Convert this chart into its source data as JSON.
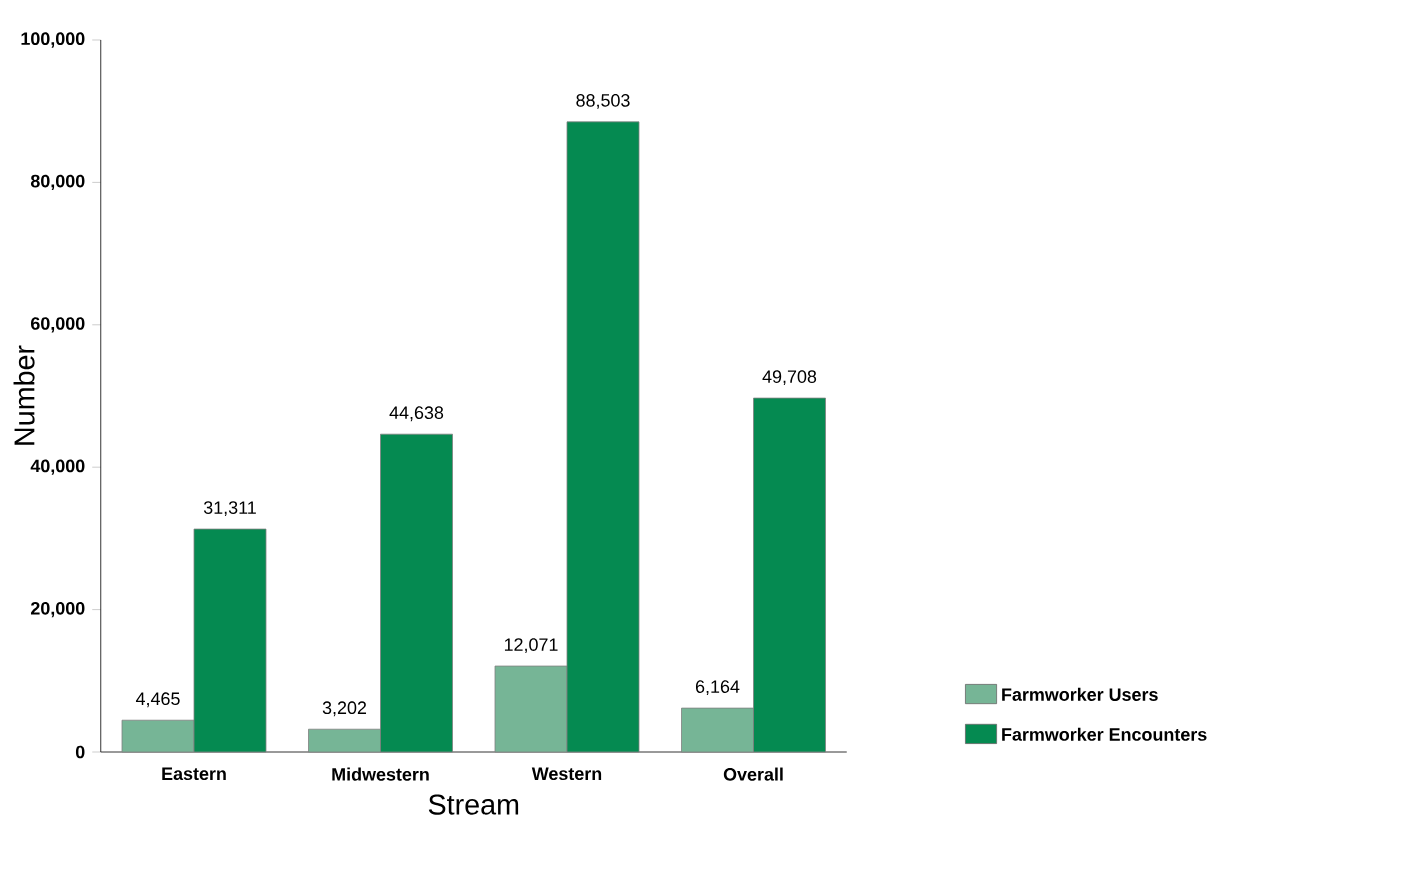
{
  "chart_data": {
    "type": "bar",
    "xlabel": "Stream",
    "ylabel": "Number",
    "categories": [
      "Eastern",
      "Midwestern",
      "Western",
      "Overall"
    ],
    "series": [
      {
        "name": "Farmworker Users",
        "color": "#76b596",
        "values": [
          4465,
          3202,
          12071,
          6164
        ],
        "value_labels": [
          "4,465",
          "3,202",
          "12,071",
          "6,164"
        ]
      },
      {
        "name": "Farmworker Encounters",
        "color": "#058a51",
        "values": [
          31311,
          44638,
          88503,
          49708
        ],
        "value_labels": [
          "31,311",
          "44,638",
          "88,503",
          "49,708"
        ]
      }
    ],
    "ylim": [
      0,
      100000
    ],
    "yticks": [
      0,
      {
        "value": 20000,
        "label": "20,000"
      },
      {
        "value": 40000,
        "label": "40,000"
      },
      {
        "value": 60000,
        "label": "60,000"
      },
      {
        "value": 80000,
        "label": "80,000"
      },
      {
        "value": 100000,
        "label": "100,000"
      }
    ],
    "grid": false,
    "legend": "right"
  }
}
